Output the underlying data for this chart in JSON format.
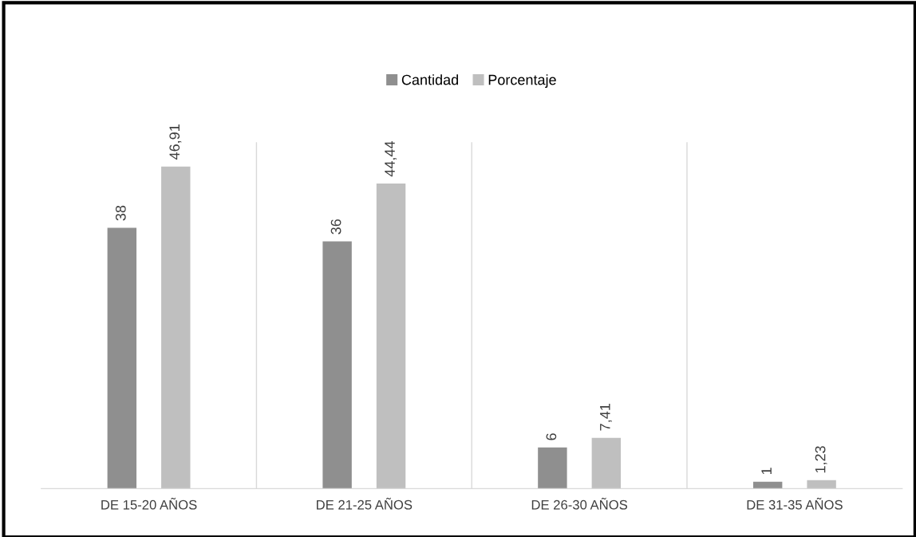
{
  "chart_data": {
    "type": "bar",
    "categories": [
      "DE 15-20 AÑOS",
      "DE 21-25 AÑOS",
      "DE 26-30 AÑOS",
      "DE 31-35 AÑOS"
    ],
    "series": [
      {
        "name": "Cantidad",
        "color": "#8f8f8f",
        "values": [
          38,
          36,
          6,
          1
        ],
        "value_labels": [
          "38",
          "36",
          "6",
          "1"
        ]
      },
      {
        "name": "Porcentaje",
        "color": "#bfbfbf",
        "values": [
          46.91,
          44.44,
          7.41,
          1.23
        ],
        "value_labels": [
          "46,91",
          "44,44",
          "7,41",
          "1,23"
        ]
      }
    ],
    "grid": "x",
    "legend": "top",
    "tick_labels": "x"
  }
}
